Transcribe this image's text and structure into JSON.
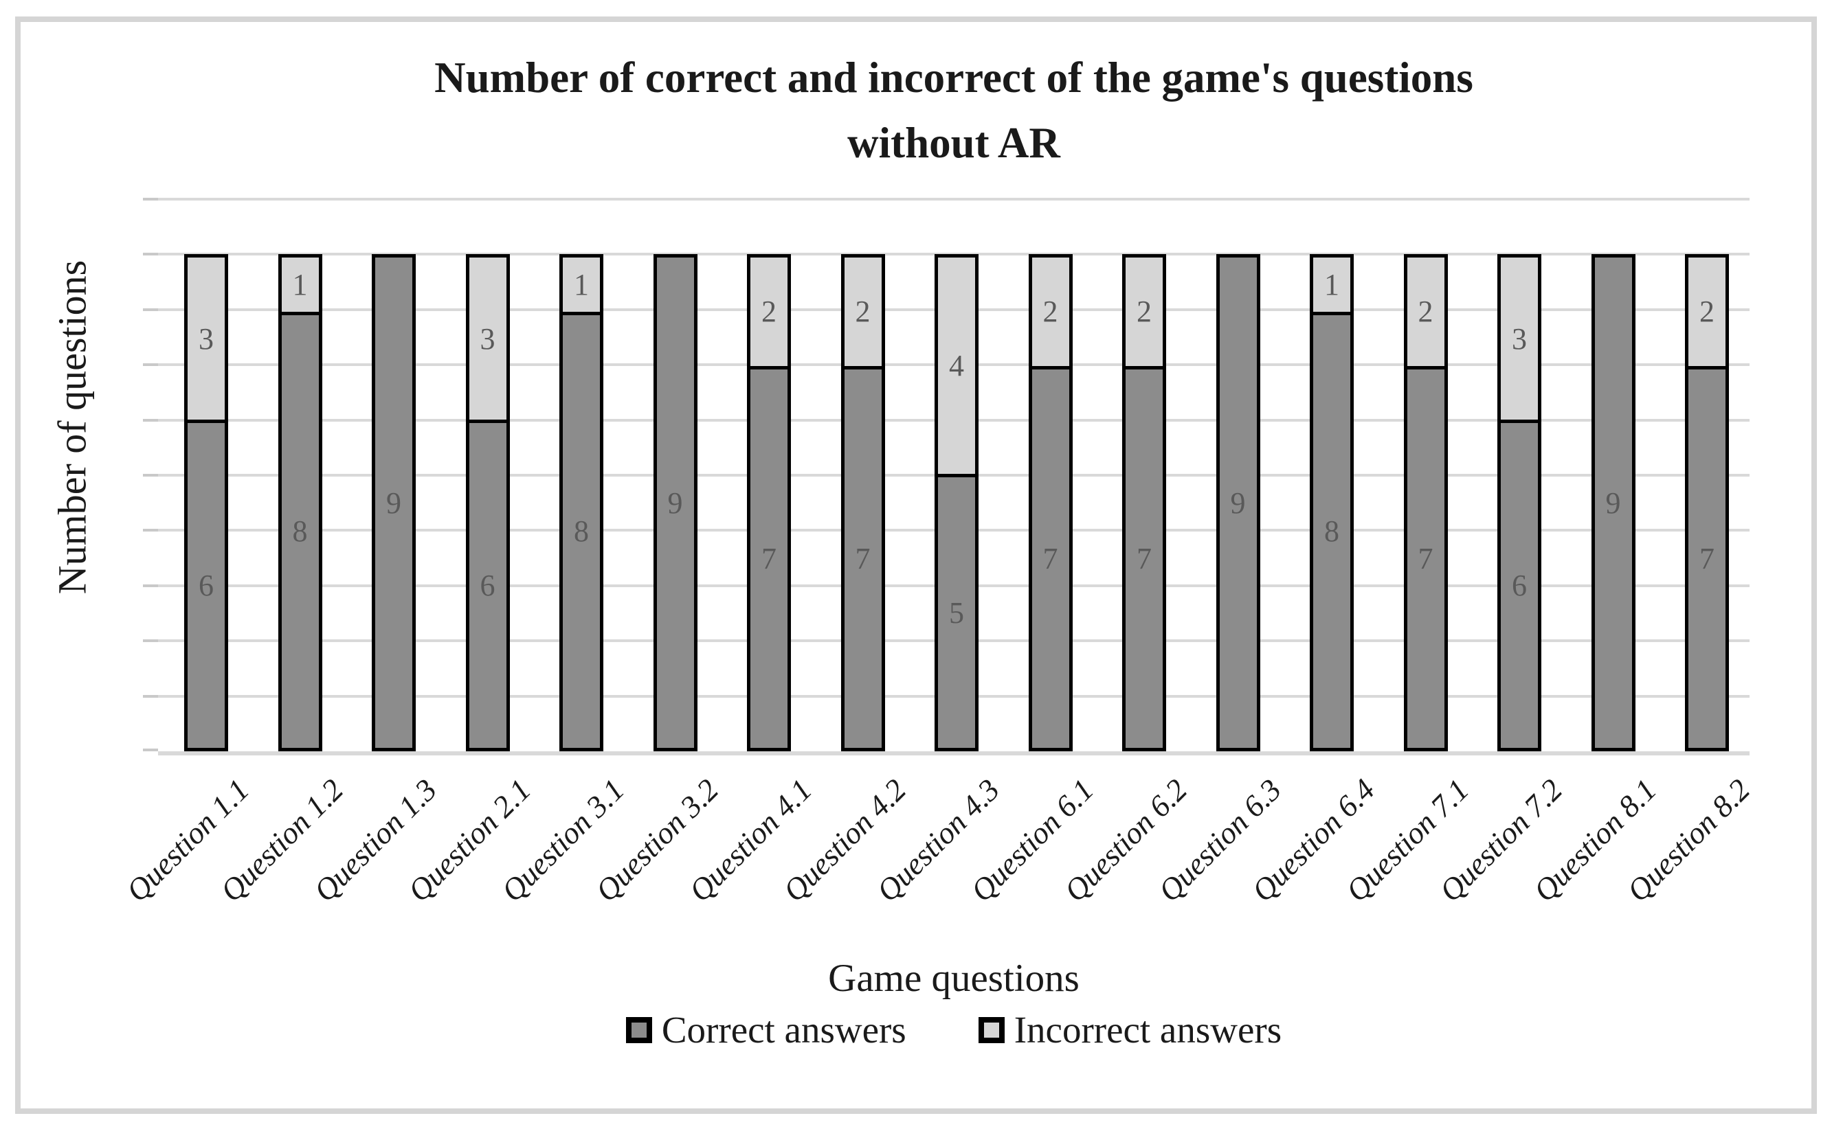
{
  "chart_data": {
    "type": "bar",
    "subtype": "stacked-vertical",
    "title": "Number of correct and incorrect of the game's questions\nwithout AR",
    "xlabel": "Game questions",
    "ylabel": "Number of questions",
    "ylim": [
      0,
      10
    ],
    "gridline_step": 1,
    "grid": "horizontal",
    "legend_position": "bottom",
    "categories": [
      "Question 1.1",
      "Question 1.2",
      "Question 1.3",
      "Question 2.1",
      "Question 3.1",
      "Question 3.2",
      "Question 4.1",
      "Question 4.2",
      "Question 4.3",
      "Question 6.1",
      "Question 6.2",
      "Question 6.3",
      "Question 6.4",
      "Question 7.1",
      "Question 7.2",
      "Question 8.1",
      "Question 8.2"
    ],
    "series": [
      {
        "name": "Correct answers",
        "color": "#8c8c8c",
        "values": [
          6,
          8,
          9,
          6,
          8,
          9,
          7,
          7,
          5,
          7,
          7,
          9,
          8,
          7,
          6,
          9,
          7
        ]
      },
      {
        "name": "Incorrect answers",
        "color": "#d6d6d6",
        "values": [
          3,
          1,
          0,
          3,
          1,
          0,
          2,
          2,
          4,
          2,
          2,
          0,
          1,
          2,
          3,
          0,
          2
        ]
      }
    ],
    "bar_total": 9,
    "data_label_color": "#595959",
    "bar_border_color": "#000000",
    "gridline_color": "#d9d9d9",
    "frame_color": "#d5d5d5"
  }
}
